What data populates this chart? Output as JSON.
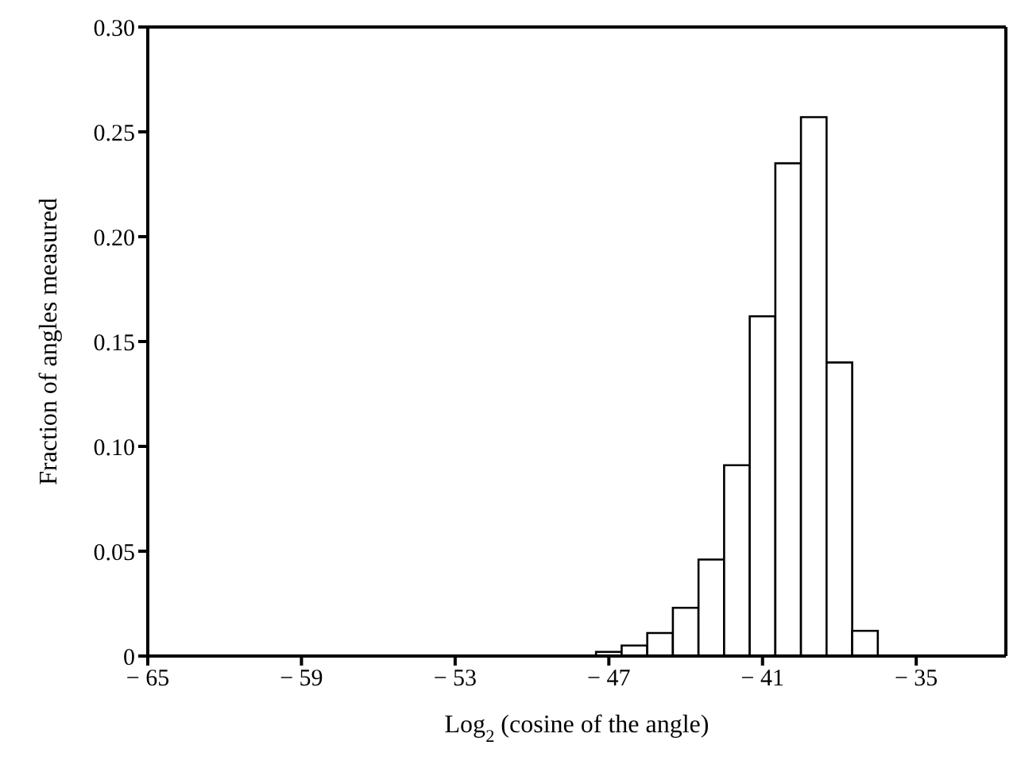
{
  "chart_data": {
    "type": "histogram",
    "xlabel": "Log$_{2}$ (cosine of the angle)",
    "ylabel": "Fraction of angles measured",
    "bins": [
      -47.5,
      -46.5,
      -45.5,
      -44.5,
      -43.5,
      -42.5,
      -41.5,
      -40.5,
      -39.5,
      -38.5,
      -37.5,
      -36.5
    ],
    "values": [
      0.002,
      0.005,
      0.011,
      0.023,
      0.046,
      0.091,
      0.162,
      0.235,
      0.257,
      0.14,
      0.012
    ],
    "color": "#ffffff",
    "xlim": [
      -65,
      -31.5
    ],
    "xticks": [
      -65,
      -59,
      -53,
      -47,
      -41,
      -35
    ],
    "ylim": [
      0,
      0.3
    ],
    "yticks": [
      0,
      0.05,
      {
        "value": 0.1,
        "label": "0.10"
      },
      0.15,
      {
        "value": 0.2,
        "label": "0.20"
      },
      0.25,
      {
        "value": 0.3,
        "label": "0.30"
      }
    ],
    "grid": false
  }
}
